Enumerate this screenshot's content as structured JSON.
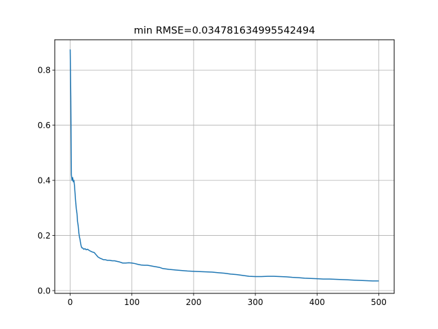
{
  "chart_data": {
    "type": "line",
    "title": "min RMSE=0.034781634995542494",
    "xlabel": "",
    "ylabel": "",
    "xlim": [
      -25,
      525
    ],
    "ylim": [
      -0.01,
      0.91
    ],
    "grid": true,
    "xticks": [
      0,
      100,
      200,
      300,
      400,
      500
    ],
    "xtick_labels": [
      "0",
      "100",
      "200",
      "300",
      "400",
      "500"
    ],
    "yticks": [
      0.0,
      0.2,
      0.4,
      0.6,
      0.8
    ],
    "ytick_labels": [
      "0.0",
      "0.2",
      "0.4",
      "0.6",
      "0.8"
    ],
    "series": [
      {
        "color": "#1f77b4",
        "x": [
          0,
          1,
          2,
          3,
          4,
          5,
          6,
          7,
          8,
          9,
          10,
          11,
          12,
          13,
          14,
          15,
          16,
          17,
          18,
          19,
          20,
          22,
          24,
          26,
          28,
          30,
          33,
          36,
          39,
          42,
          45,
          48,
          51,
          54,
          57,
          60,
          64,
          68,
          72,
          76,
          80,
          85,
          90,
          95,
          100,
          105,
          110,
          115,
          120,
          125,
          130,
          135,
          140,
          145,
          150,
          160,
          170,
          180,
          190,
          200,
          210,
          220,
          230,
          240,
          250,
          260,
          270,
          280,
          290,
          300,
          310,
          320,
          330,
          340,
          350,
          360,
          370,
          380,
          390,
          400,
          410,
          420,
          430,
          440,
          450,
          460,
          470,
          480,
          490,
          500
        ],
        "y": [
          0.875,
          0.7,
          0.42,
          0.4,
          0.41,
          0.395,
          0.4,
          0.38,
          0.35,
          0.32,
          0.295,
          0.28,
          0.25,
          0.235,
          0.21,
          0.195,
          0.185,
          0.17,
          0.16,
          0.155,
          0.155,
          0.15,
          0.152,
          0.148,
          0.15,
          0.147,
          0.143,
          0.14,
          0.138,
          0.13,
          0.122,
          0.118,
          0.115,
          0.112,
          0.112,
          0.11,
          0.11,
          0.108,
          0.108,
          0.106,
          0.104,
          0.1,
          0.1,
          0.101,
          0.1,
          0.098,
          0.095,
          0.093,
          0.092,
          0.092,
          0.09,
          0.088,
          0.086,
          0.084,
          0.08,
          0.077,
          0.075,
          0.073,
          0.071,
          0.07,
          0.069,
          0.068,
          0.067,
          0.065,
          0.063,
          0.06,
          0.058,
          0.055,
          0.052,
          0.051,
          0.051,
          0.052,
          0.052,
          0.051,
          0.05,
          0.048,
          0.047,
          0.045,
          0.044,
          0.043,
          0.042,
          0.042,
          0.041,
          0.04,
          0.039,
          0.038,
          0.037,
          0.036,
          0.035,
          0.035
        ]
      }
    ]
  }
}
